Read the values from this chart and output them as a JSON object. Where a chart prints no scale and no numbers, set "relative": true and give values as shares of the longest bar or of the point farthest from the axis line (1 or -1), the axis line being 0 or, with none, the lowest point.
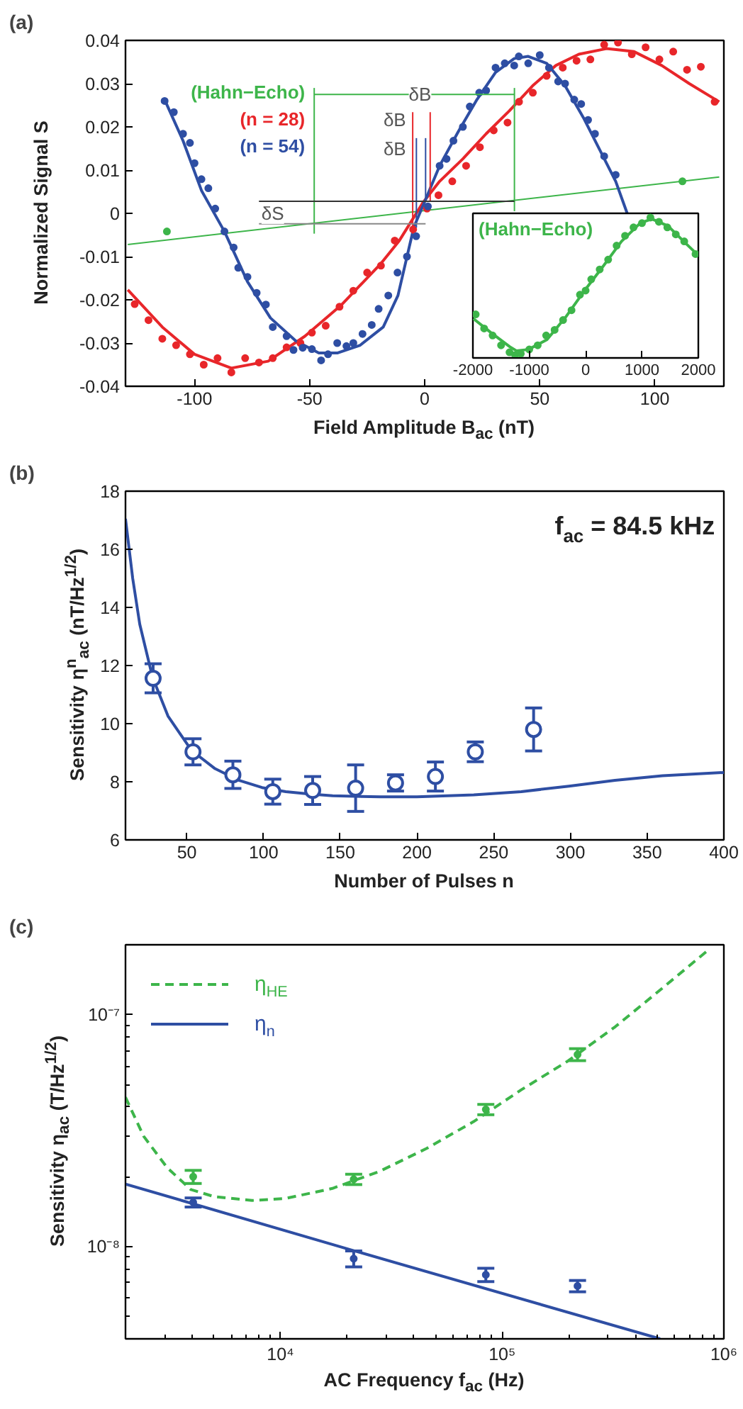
{
  "chart_data": [
    {
      "type": "line",
      "title": "(a)",
      "xlabel": "Field Amplitude B$_{ac}$ (nT)",
      "ylabel": "Normalized Signal S",
      "xlim": [
        -130,
        130
      ],
      "xticks": [
        -100,
        -50,
        0,
        50,
        100
      ],
      "ylim": [
        -0.04,
        0.04
      ],
      "yticks": [
        -0.04,
        -0.03,
        -0.02,
        -0.01,
        0,
        0.01,
        0.02,
        0.03,
        0.04
      ],
      "legend": "top left",
      "annotations": [
        {
          "text": "δB",
          "x": -2,
          "y": 0.0276
        },
        {
          "text": "δB",
          "x": -13,
          "y": 0.0216
        },
        {
          "text": "δB",
          "x": -13,
          "y": 0.015
        },
        {
          "text": "δS",
          "x": -66,
          "y": 0.0
        }
      ],
      "series": [
        {
          "name": "(Hahn−Echo)",
          "color": "#3db54a",
          "x": [
            -129,
            128
          ],
          "values": [
            -0.0072,
            0.0084
          ]
        },
        {
          "name": "(n = 28)",
          "color": "#e8262a",
          "x": [
            -129,
            -114,
            -100,
            -84,
            -68,
            -52,
            -36,
            -19,
            -11,
            -0.6,
            6.5,
            16.6,
            26.7,
            36.8,
            46.9,
            57,
            67,
            79,
            91,
            103,
            115,
            128
          ],
          "values": [
            -0.0177,
            -0.0263,
            -0.0326,
            -0.0358,
            -0.0342,
            -0.0284,
            -0.0211,
            -0.0116,
            -0.0063,
            0.0026,
            0.0074,
            0.0126,
            0.0184,
            0.0237,
            0.0295,
            0.0342,
            0.0368,
            0.0381,
            0.0374,
            0.0342,
            0.03,
            0.0258
          ]
        },
        {
          "name": "(n = 54)",
          "color": "#2e4ea3",
          "x": [
            -113,
            -105,
            -97,
            -87,
            -77,
            -67,
            -56,
            -46,
            -38,
            -28,
            -18,
            -11.6,
            -4.7,
            0.4,
            6.5,
            14.6,
            22.7,
            30.8,
            38.9,
            45,
            53,
            61,
            69,
            77,
            83,
            88
          ],
          "values": [
            0.0263,
            0.0168,
            0.0053,
            -0.0042,
            -0.0158,
            -0.0242,
            -0.0295,
            -0.0323,
            -0.0323,
            -0.0305,
            -0.0263,
            -0.019,
            -0.0032,
            0.0032,
            0.011,
            0.0189,
            0.0263,
            0.0326,
            0.0358,
            0.0363,
            0.0347,
            0.0295,
            0.0221,
            0.0137,
            0.0074,
            0.0
          ]
        },
        {
          "type": "scatter",
          "color": "#e8262a",
          "x": [
            -126,
            -120,
            -114,
            -108,
            -102,
            -96,
            -90,
            -84,
            -78,
            -72,
            -66,
            -60,
            -54,
            -49,
            -43,
            -37,
            -31,
            -25,
            -19,
            -13,
            -5,
            1,
            6,
            12,
            18,
            24,
            30,
            36,
            41,
            47,
            53,
            60,
            66,
            72,
            78,
            84,
            90,
            96,
            102,
            108,
            114,
            120,
            126
          ],
          "values": [
            -0.021,
            -0.0247,
            -0.029,
            -0.0305,
            -0.0326,
            -0.035,
            -0.0335,
            -0.0368,
            -0.0335,
            -0.0345,
            -0.0335,
            -0.031,
            -0.03,
            -0.0276,
            -0.026,
            -0.0216,
            -0.0179,
            -0.0137,
            -0.0121,
            -0.0063,
            -0.0037,
            0.0011,
            0.0042,
            0.0074,
            0.011,
            0.0153,
            0.0192,
            0.021,
            0.0258,
            0.0279,
            0.0318,
            0.0337,
            0.0353,
            0.0356,
            0.039,
            0.0395,
            0.0368,
            0.0384,
            0.0356,
            0.0374,
            0.0332,
            0.0339,
            0.0258
          ]
        },
        {
          "type": "scatter",
          "color": "#2e4ea3",
          "x": [
            -113,
            -109,
            -105,
            -102,
            -100,
            -97,
            -94,
            -91,
            -87,
            -83,
            -81,
            -77,
            -73,
            -69,
            -66,
            -60,
            -57,
            -53,
            -49,
            -45,
            -42,
            -38,
            -34,
            -31,
            -27,
            -23,
            -20,
            -15.8,
            -11.8,
            -7.7,
            -3.7,
            1.4,
            6.5,
            9.5,
            12.5,
            16.6,
            19.6,
            23.7,
            26.7,
            30.8,
            34.8,
            38.9,
            40.9,
            45,
            50,
            54,
            58,
            61,
            65,
            68,
            71,
            74,
            78,
            83
          ],
          "values": [
            0.026,
            0.0234,
            0.0184,
            0.0163,
            0.0116,
            0.0079,
            0.0058,
            0.0011,
            -0.0042,
            -0.0079,
            -0.0126,
            -0.0147,
            -0.0184,
            -0.0211,
            -0.0263,
            -0.0284,
            -0.0316,
            -0.0311,
            -0.0314,
            -0.034,
            -0.0326,
            -0.03,
            -0.0307,
            -0.03,
            -0.0279,
            -0.0258,
            -0.0221,
            -0.019,
            -0.0137,
            -0.01,
            -0.0053,
            0.0016,
            0.011,
            0.0126,
            0.0168,
            0.02,
            0.0247,
            0.0279,
            0.0284,
            0.0337,
            0.0347,
            0.0342,
            0.0363,
            0.0347,
            0.0366,
            0.0337,
            0.0305,
            0.03,
            0.0263,
            0.0253,
            0.0216,
            0.0184,
            0.0132,
            0.0089
          ]
        },
        {
          "type": "scatter",
          "color": "#3db54a",
          "x": [
            -112,
            112
          ],
          "values": [
            -0.0042,
            0.0074
          ]
        },
        {
          "color": "#3db54a",
          "x": [
            -48,
            -48
          ],
          "values": [
            0.029,
            -0.0047
          ]
        },
        {
          "color": "#3db54a",
          "x": [
            39,
            39
          ],
          "values": [
            0.029,
            0.0005
          ]
        },
        {
          "color": "#3db54a",
          "x": [
            -48,
            39
          ],
          "values": [
            0.0275,
            0.0275
          ]
        },
        {
          "color": "#e8262a",
          "x": [
            -5.2,
            -5.2
          ],
          "values": [
            0.0234,
            -0.0047
          ]
        },
        {
          "color": "#e8262a",
          "x": [
            2.4,
            2.4
          ],
          "values": [
            0.0234,
            0.0028
          ]
        },
        {
          "color": "#2e4ea3",
          "x": [
            -3.6,
            -3.6
          ],
          "values": [
            0.0174,
            -0.0033
          ]
        },
        {
          "color": "#2e4ea3",
          "x": [
            0.4,
            0.4
          ],
          "values": [
            0.0174,
            0.0033
          ]
        },
        {
          "color": "#333333",
          "x": [
            -72,
            39
          ],
          "values": [
            0.0028,
            0.0028
          ]
        },
        {
          "color": "#888888",
          "x": [
            -72,
            0.4
          ],
          "values": [
            -0.0024,
            -0.0024
          ]
        }
      ]
    },
    {
      "type": "line",
      "title": "(Hahn−Echo)",
      "relative": true,
      "xlim": [
        -2000,
        2000
      ],
      "xticks": [
        -2000,
        -1000,
        0,
        1000,
        2000
      ],
      "series": [
        {
          "color": "#3db54a",
          "x": [
            -1992,
            -1678,
            -1347,
            -1223,
            -1017,
            -686,
            -355,
            0,
            306,
            636,
            967,
            1174,
            1463,
            1793,
            2000
          ],
          "values": [
            0.28,
            0.18,
            0.08,
            0.05,
            0.06,
            0.13,
            0.29,
            0.49,
            0.65,
            0.83,
            0.96,
            0.99,
            0.94,
            0.81,
            0.73
          ]
        },
        {
          "type": "scatter",
          "color": "#3db54a",
          "x": [
            -1950,
            -1800,
            -1650,
            -1500,
            -1350,
            -1250,
            -1150,
            -1000,
            -850,
            -700,
            -550,
            -400,
            -250,
            -100,
            0,
            100,
            250,
            400,
            550,
            700,
            850,
            1000,
            1150,
            1300,
            1450,
            1600,
            1750,
            1950
          ],
          "values": [
            0.31,
            0.21,
            0.16,
            0.09,
            0.04,
            0.02,
            0.03,
            0.06,
            0.09,
            0.16,
            0.2,
            0.27,
            0.34,
            0.45,
            0.48,
            0.56,
            0.63,
            0.7,
            0.8,
            0.87,
            0.93,
            0.96,
            1.0,
            0.97,
            0.93,
            0.88,
            0.83,
            0.74
          ]
        }
      ]
    },
    {
      "type": "line",
      "title": "(b)",
      "xlabel": "Number of Pulses n",
      "ylabel": "Sensitivity η$^{n}$$_{ac}$ (nT/Hz$^{1/2}$)",
      "xlim": [
        10,
        400
      ],
      "xticks": [
        50,
        100,
        150,
        200,
        250,
        300,
        350,
        400
      ],
      "ylim": [
        6,
        18
      ],
      "yticks": [
        6,
        8,
        10,
        12,
        14,
        16,
        18
      ],
      "annotations": [
        "f$_{ac}$ = 84.5 kHz"
      ],
      "series": [
        {
          "color": "#2e4ea3",
          "x": [
            10,
            14.7,
            19.3,
            27.6,
            37.7,
            53,
            68.4,
            83.8,
            99,
            114.5,
            129.8,
            145,
            176,
            200,
            237,
            268,
            299,
            329,
            360,
            400
          ],
          "values": [
            17.05,
            15.0,
            13.42,
            11.6,
            10.26,
            9.08,
            8.45,
            8.05,
            7.8,
            7.66,
            7.58,
            7.52,
            7.48,
            7.48,
            7.55,
            7.66,
            7.85,
            8.05,
            8.21,
            8.32
          ]
        },
        {
          "type": "scatter",
          "marker": "circle",
          "color": "#2e4ea3",
          "x": [
            28,
            54,
            80,
            106,
            132,
            160,
            186,
            212,
            238,
            276
          ],
          "values": [
            11.56,
            9.03,
            8.24,
            7.66,
            7.7,
            7.78,
            7.96,
            8.18,
            9.03,
            9.8
          ],
          "errors": [
            0.5,
            0.45,
            0.47,
            0.43,
            0.48,
            0.8,
            0.28,
            0.5,
            0.34,
            0.74
          ]
        }
      ]
    },
    {
      "type": "line",
      "title": "(c)",
      "xlabel": "AC Frequency f$_{ac}$ (Hz)",
      "ylabel": "Sensitivity η$_{ac}$ (T/Hz$^{1/2}$)",
      "log": "xy",
      "xlim": [
        2000,
        1000000
      ],
      "xticks": [
        {
          "value": 10000,
          "label": "10⁴"
        },
        {
          "value": 100000,
          "label": "10⁵"
        },
        {
          "value": 1000000,
          "label": "10⁶"
        }
      ],
      "ylim": [
        4e-09,
        2e-07
      ],
      "yticks": [
        {
          "value": 1e-08,
          "label": "10⁻⁸"
        },
        {
          "value": 1e-07,
          "label": "10⁻⁷"
        }
      ],
      "legend": "top left",
      "series": [
        {
          "name": "η$_{HE}$",
          "line_style": "dashed",
          "color": "#3db54a",
          "x": [
            2000,
            2415,
            3080,
            3945,
            5035,
            7450,
            10500,
            17140,
            28000,
            45700,
            74500,
            121600,
            198600,
            324000,
            528000,
            863000
          ],
          "values": [
            4.4e-08,
            2.99e-08,
            2.19e-08,
            1.76e-08,
            1.64e-08,
            1.58e-08,
            1.61e-08,
            1.78e-08,
            2.11e-08,
            2.65e-08,
            3.46e-08,
            4.73e-08,
            6.32e-08,
            8.87e-08,
            1.3e-07,
            1.92e-07
          ]
        },
        {
          "name": "η$_{n}$",
          "color": "#2e4ea3",
          "x": [
            2000,
            21400,
            516000
          ],
          "values": [
            1.86e-08,
            9.6e-09,
            4e-09
          ]
        },
        {
          "type": "scatter",
          "color": "#3db54a",
          "x": [
            4040,
            21400,
            84400,
            218800
          ],
          "values": [
            2e-08,
            1.95e-08,
            3.9e-08,
            6.73e-08
          ],
          "errors": [
            1.3e-09,
            1e-09,
            2e-09,
            4e-09
          ]
        },
        {
          "type": "scatter",
          "color": "#2e4ea3",
          "x": [
            4040,
            21400,
            84400,
            218800
          ],
          "values": [
            1.55e-08,
            8.87e-09,
            7.56e-09,
            6.76e-09
          ],
          "errors": [
            7e-10,
            7e-10,
            5e-10,
            3.8e-10
          ]
        }
      ]
    }
  ]
}
